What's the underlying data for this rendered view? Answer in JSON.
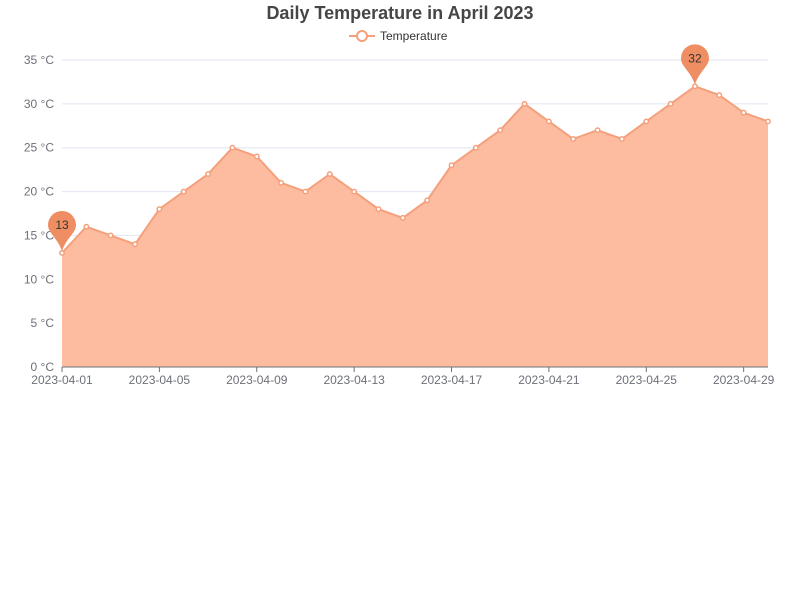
{
  "chart": {
    "title": "Daily Temperature in April 2023",
    "legend": "Temperature",
    "unit": "°C",
    "min_label": "13",
    "max_label": "32"
  },
  "colors": {
    "line": "#f4a07c",
    "area": "#fdbc9f",
    "marker": "#f08e63",
    "grid": "#e0e6f1",
    "axis": "#6e7079",
    "title": "#464646"
  },
  "chart_data": {
    "type": "area",
    "title": "Daily Temperature in April 2023",
    "xlabel": "",
    "ylabel": "",
    "x": [
      "2023-04-01",
      "2023-04-02",
      "2023-04-03",
      "2023-04-04",
      "2023-04-05",
      "2023-04-06",
      "2023-04-07",
      "2023-04-08",
      "2023-04-09",
      "2023-04-10",
      "2023-04-11",
      "2023-04-12",
      "2023-04-13",
      "2023-04-14",
      "2023-04-15",
      "2023-04-16",
      "2023-04-17",
      "2023-04-18",
      "2023-04-19",
      "2023-04-20",
      "2023-04-21",
      "2023-04-22",
      "2023-04-23",
      "2023-04-24",
      "2023-04-25",
      "2023-04-26",
      "2023-04-27",
      "2023-04-28",
      "2023-04-29",
      "2023-04-30"
    ],
    "series": [
      {
        "name": "Temperature",
        "values": [
          13,
          16,
          15,
          14,
          18,
          20,
          22,
          25,
          24,
          21,
          20,
          22,
          20,
          18,
          17,
          19,
          23,
          25,
          27,
          30,
          28,
          26,
          27,
          26,
          28,
          30,
          32,
          31,
          29,
          28
        ]
      }
    ],
    "x_tick_labels": [
      "2023-04-01",
      "2023-04-05",
      "2023-04-09",
      "2023-04-13",
      "2023-04-17",
      "2023-04-21",
      "2023-04-25",
      "2023-04-29"
    ],
    "y_ticks": [
      0,
      5,
      10,
      15,
      20,
      25,
      30,
      35
    ],
    "y_tick_labels": [
      "0 °C",
      "5 °C",
      "10 °C",
      "15 °C",
      "20 °C",
      "25 °C",
      "30 °C",
      "35 °C"
    ],
    "ylim": [
      0,
      35
    ],
    "grid": true,
    "legend_position": "top-center",
    "annotations": [
      {
        "type": "min",
        "x": "2023-04-01",
        "value": 13
      },
      {
        "type": "max",
        "x": "2023-04-27",
        "value": 32
      }
    ]
  }
}
